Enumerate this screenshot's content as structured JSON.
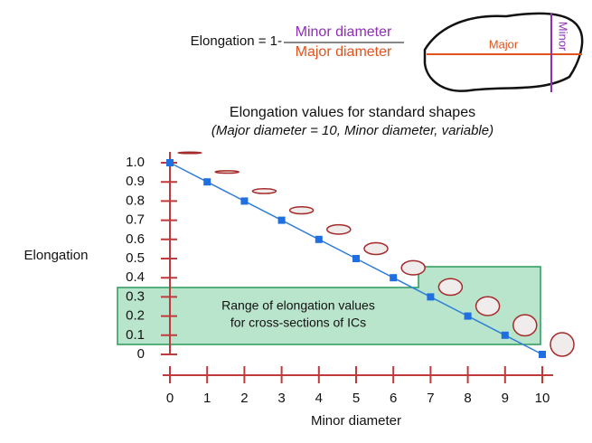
{
  "formula": {
    "lhs": "Elongation = 1-",
    "numerator": "Minor diameter",
    "denominator": "Major diameter"
  },
  "shape_diagram": {
    "major_label": "Major",
    "minor_label": "Minor"
  },
  "chart_data": {
    "type": "line",
    "title": "Elongation values for standard shapes",
    "subtitle": "(Major diameter = 10, Minor diameter, variable)",
    "x_label": "Minor diameter",
    "y_label": "Elongation",
    "x": [
      0,
      1,
      2,
      3,
      4,
      5,
      6,
      7,
      8,
      9,
      10
    ],
    "series": [
      {
        "color": "#2f7fd6",
        "values": [
          1.0,
          0.9,
          0.8,
          0.7,
          0.6,
          0.5,
          0.4,
          0.3,
          0.2,
          0.1,
          0
        ]
      }
    ],
    "xlim": [
      0,
      10
    ],
    "xticks": [
      0,
      1,
      2,
      3,
      4,
      5,
      6,
      7,
      8,
      9,
      10
    ],
    "ylim": [
      0,
      1
    ],
    "yticks": [
      0,
      0.1,
      0.2,
      0.3,
      0.4,
      0.5,
      0.6,
      0.7,
      0.8,
      0.9,
      {
        "value": 1,
        "label": "1.0"
      }
    ],
    "annotation": [
      "Range of elongation values",
      "for cross-sections of ICs"
    ]
  }
}
